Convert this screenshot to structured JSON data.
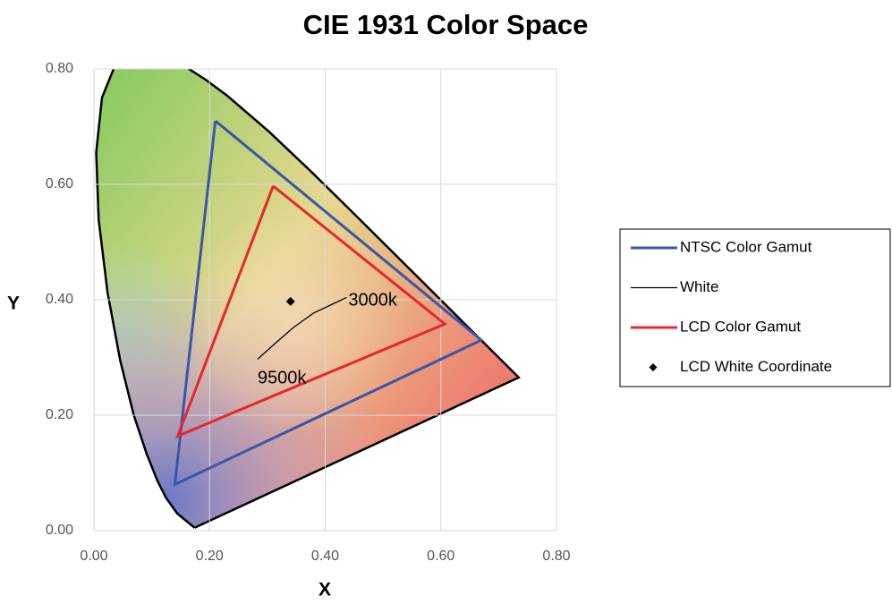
{
  "chart_data": {
    "type": "scatter",
    "title": "CIE 1931 Color Space",
    "x_label": "X",
    "y_label": "Y",
    "xlim": [
      0,
      0.8
    ],
    "ylim": [
      0,
      0.8
    ],
    "xticks": [
      {
        "value": 0,
        "label": "0.00"
      },
      {
        "value": 0.2,
        "label": "0.20"
      },
      {
        "value": 0.4,
        "label": "0.40"
      },
      {
        "value": 0.6,
        "label": "0.60"
      },
      {
        "value": 0.8,
        "label": "0.80"
      }
    ],
    "yticks": [
      {
        "value": 0,
        "label": "0.00"
      },
      {
        "value": 0.2,
        "label": "0.20"
      },
      {
        "value": 0.4,
        "label": "0.40"
      },
      {
        "value": 0.6,
        "label": "0.60"
      },
      {
        "value": 0.8,
        "label": "0.80"
      }
    ],
    "grid": true,
    "legend": "right",
    "outline": {
      "color": "#000000",
      "x": [
        0.1741,
        0.144,
        0.1241,
        0.1096,
        0.0913,
        0.0687,
        0.0454,
        0.0235,
        0.0082,
        0.0039,
        0.0139,
        0.0389,
        0.0743,
        0.1142,
        0.1547,
        0.1929,
        0.2296,
        0.3016,
        0.3731,
        0.4441,
        0.5125,
        0.5752,
        0.627,
        0.6915,
        0.7347,
        0.1741
      ],
      "y": [
        0.005,
        0.0297,
        0.0578,
        0.0868,
        0.1327,
        0.2007,
        0.295,
        0.4127,
        0.5384,
        0.6548,
        0.7502,
        0.812,
        0.8338,
        0.8262,
        0.8059,
        0.7816,
        0.7543,
        0.6923,
        0.6245,
        0.5547,
        0.4866,
        0.4242,
        0.3725,
        0.3083,
        0.2653,
        0.005
      ]
    },
    "series": [
      {
        "name": "NTSC Color Gamut",
        "color": "#3a56a8",
        "mode": "line",
        "x": [
          0.21,
          0.67,
          0.14,
          0.21
        ],
        "values": [
          0.71,
          0.33,
          0.08,
          0.71
        ]
      },
      {
        "name": "White",
        "color": "#000000",
        "mode": "thin-line",
        "x": [
          0.437,
          0.38,
          0.345,
          0.313,
          0.283
        ],
        "values": [
          0.404,
          0.377,
          0.352,
          0.324,
          0.297
        ]
      },
      {
        "name": "LCD Color Gamut",
        "color": "#e8262b",
        "mode": "line",
        "x": [
          0.31,
          0.607,
          0.145,
          0.31
        ],
        "values": [
          0.597,
          0.358,
          0.164,
          0.597
        ]
      },
      {
        "name": "LCD White Coordinate",
        "color": "#000000",
        "mode": "marker",
        "x": [
          0.34
        ],
        "values": [
          0.397
        ]
      }
    ],
    "annotations": [
      "3000k",
      "9500k"
    ]
  }
}
